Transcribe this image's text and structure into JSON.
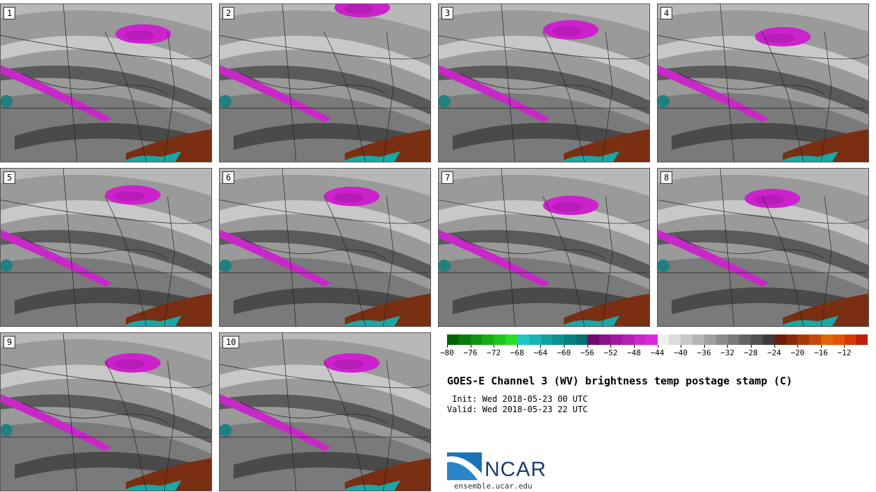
{
  "panels": [
    {
      "number": "1"
    },
    {
      "number": "2"
    },
    {
      "number": "3"
    },
    {
      "number": "4"
    },
    {
      "number": "5"
    },
    {
      "number": "6"
    },
    {
      "number": "7"
    },
    {
      "number": "8"
    },
    {
      "number": "9"
    },
    {
      "number": "10"
    }
  ],
  "colorbar": {
    "colors": [
      "#006400",
      "#087c08",
      "#109410",
      "#18ac18",
      "#20c420",
      "#28dc28",
      "#20c8c8",
      "#18b4b4",
      "#10a0a0",
      "#0c9090",
      "#088080",
      "#047070",
      "#6e0a6e",
      "#8a128a",
      "#a01aa0",
      "#b420b4",
      "#c828c8",
      "#dc28dc",
      "#f0f0f0",
      "#dcdcdc",
      "#c8c8c8",
      "#b4b4b4",
      "#a0a0a0",
      "#8c8c8c",
      "#787878",
      "#646464",
      "#505050",
      "#3c3c3c",
      "#6e1e0a",
      "#8a2a0a",
      "#a83a0a",
      "#c44a08",
      "#e06408",
      "#e85008",
      "#d83808",
      "#c02008"
    ],
    "tick_labels": [
      "−80",
      "−76",
      "−72",
      "−68",
      "−64",
      "−60",
      "−56",
      "−52",
      "−48",
      "−44",
      "−40",
      "−36",
      "−32",
      "−28",
      "−24",
      "−20",
      "−16",
      "−12"
    ]
  },
  "title": "GOES-E Channel 3 (WV) brightness temp postage stamp (C)",
  "init_line": " Init: Wed 2018-05-23 00 UTC",
  "valid_line": "Valid: Wed 2018-05-23 22 UTC",
  "logo": {
    "text": "NCAR",
    "url": "ensemble.ucar.edu"
  }
}
